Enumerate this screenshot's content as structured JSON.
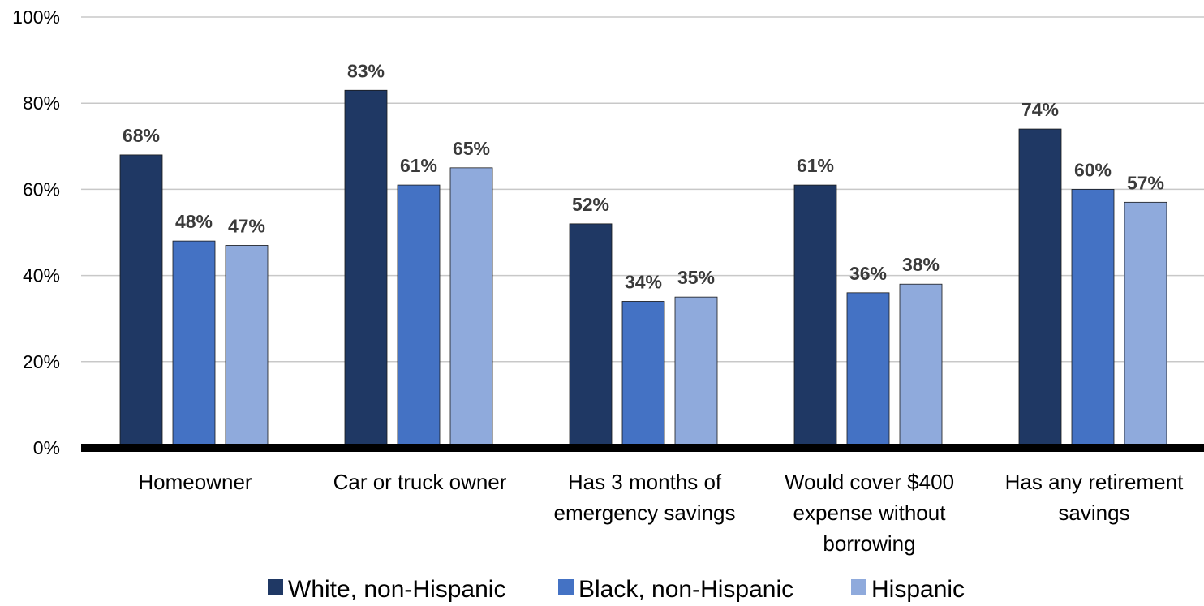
{
  "chart_data": {
    "type": "bar",
    "categories": [
      [
        "Homeowner"
      ],
      [
        "Car or truck owner"
      ],
      [
        "Has 3 months of",
        "emergency savings"
      ],
      [
        "Would cover $400",
        "expense without",
        "borrowing"
      ],
      [
        "Has any retirement",
        "savings"
      ]
    ],
    "series": [
      {
        "name": "White, non-Hispanic",
        "color": "#1f3864",
        "values": [
          68,
          83,
          52,
          61,
          74
        ],
        "labels": [
          "68%",
          "83%",
          "52%",
          "61%",
          "74%"
        ]
      },
      {
        "name": "Black, non-Hispanic",
        "color": "#4472c4",
        "values": [
          48,
          61,
          34,
          36,
          60
        ],
        "labels": [
          "48%",
          "61%",
          "34%",
          "36%",
          "60%"
        ]
      },
      {
        "name": "Hispanic",
        "color": "#8faadc",
        "values": [
          47,
          65,
          35,
          38,
          57
        ],
        "labels": [
          "47%",
          "65%",
          "35%",
          "38%",
          "57%"
        ]
      }
    ],
    "ylim": [
      0,
      100
    ],
    "yticks": [
      {
        "value": 0,
        "label": "0%"
      },
      {
        "value": 20,
        "label": "20%"
      },
      {
        "value": 40,
        "label": "40%"
      },
      {
        "value": 60,
        "label": "60%"
      },
      {
        "value": 80,
        "label": "80%"
      },
      {
        "value": 100,
        "label": "100%"
      }
    ],
    "grid": true,
    "legend_position": "bottom",
    "title": "",
    "xlabel": "",
    "ylabel": ""
  }
}
